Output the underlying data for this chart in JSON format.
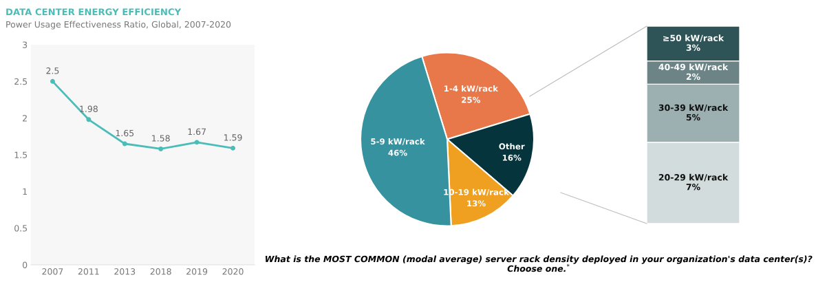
{
  "chart_data": [
    {
      "type": "line",
      "title": "DATA CENTER ENERGY EFFICIENCY",
      "subtitle": "Power Usage Effectiveness Ratio, Global, 2007-2020",
      "categories": [
        "2007",
        "2011",
        "2013",
        "2018",
        "2019",
        "2020"
      ],
      "series": [
        {
          "color": "#4bbdb8",
          "values": [
            2.5,
            1.98,
            1.65,
            1.58,
            1.67,
            1.59
          ]
        }
      ],
      "ylim": [
        0,
        3
      ],
      "yticks": [
        0,
        0.5,
        1,
        1.5,
        2,
        2.5,
        3
      ],
      "marker": "circle",
      "data_labels": true,
      "grid": false,
      "legend": false
    },
    {
      "type": "pie",
      "categories": [
        "1-4 kW/rack",
        "Other",
        "10-19 kW/rack",
        "5-9 kW/rack"
      ],
      "values": [
        25,
        16,
        13,
        46
      ],
      "colors": [
        "#e8784a",
        "#06343d",
        "#f0a020",
        "#36929e"
      ],
      "value_labels": [
        "25%",
        "16%",
        "13%",
        "46%"
      ],
      "annotations": [
        "What is the MOST COMMON (modal average) server rack density deployed in your organization's data center(s)? Choose one.$^{*}$"
      ]
    },
    {
      "type": "bar",
      "stacked": true,
      "categories": [
        null
      ],
      "tick_labels": false,
      "series": [
        {
          "color": "#d2dcdc",
          "values": [
            7
          ],
          "value_labels": [
            "20-29 kW/rack\n7%"
          ]
        },
        {
          "color": "#9db0b1",
          "values": [
            5
          ],
          "value_labels": [
            "30-39 kW/rack\n5%"
          ]
        },
        {
          "color": "#6c8486",
          "values": [
            2
          ],
          "value_labels": [
            "40-49 kW/rack\n2%"
          ]
        },
        {
          "color": "#2f5457",
          "values": [
            3
          ],
          "value_labels": [
            "≥50 kW/rack\n3%"
          ]
        }
      ]
    }
  ]
}
